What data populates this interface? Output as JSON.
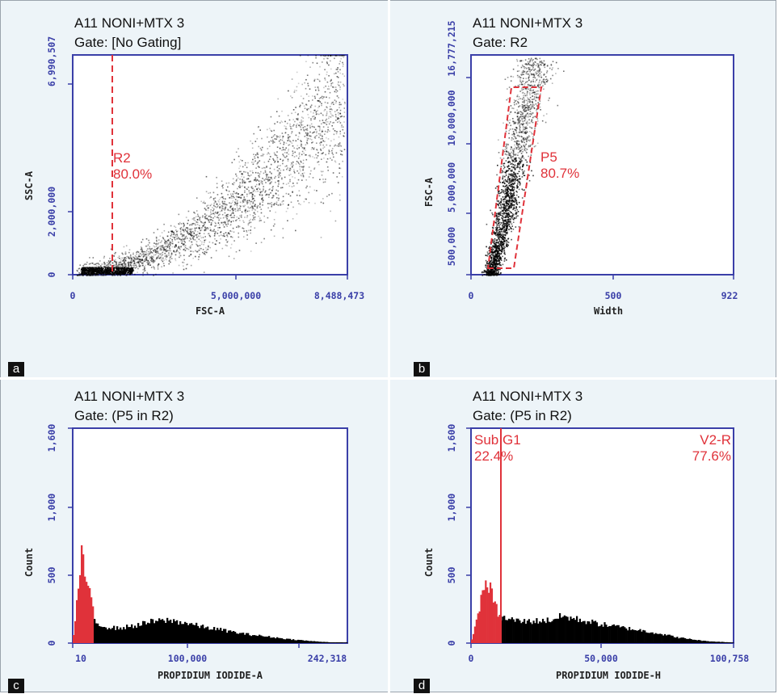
{
  "panels": [
    {
      "letter": "a",
      "title": "A11 NONI+MTX 3",
      "gate": "Gate: [No Gating]",
      "xlabel": "FSC-A",
      "ylabel": "SSC-A",
      "xticks": [
        "0",
        "5,000,000",
        "8,488,473"
      ],
      "yticks": [
        "0",
        "2,000,000",
        "6,990,507"
      ],
      "region": {
        "name": "R2",
        "pct": "80.0%"
      }
    },
    {
      "letter": "b",
      "title": "A11 NONI+MTX 3",
      "gate": "Gate: R2",
      "xlabel": "Width",
      "ylabel": "FSC-A",
      "xticks": [
        "0",
        "500",
        "922"
      ],
      "yticks": [
        "500,000",
        "5,000,000",
        "10,000,000",
        "16,777,215"
      ],
      "region": {
        "name": "P5",
        "pct": "80.7%"
      }
    },
    {
      "letter": "c",
      "title": "A11 NONI+MTX 3",
      "gate": "Gate: (P5 in R2)",
      "xlabel": "PROPIDIUM IODIDE-A",
      "ylabel": "Count",
      "xticks": [
        "10",
        "100,000",
        "242,318"
      ],
      "yticks": [
        "0",
        "500",
        "1,000",
        "1,600"
      ]
    },
    {
      "letter": "d",
      "title": "A11 NONI+MTX 3",
      "gate": "Gate: (P5 in R2)",
      "xlabel": "PROPIDIUM IODIDE-H",
      "ylabel": "Count",
      "xticks": [
        "0",
        "50,000",
        "100,758"
      ],
      "yticks": [
        "0",
        "500",
        "1,000",
        "1,600"
      ],
      "regions": [
        {
          "name": "Sub G1",
          "pct": "22.4%"
        },
        {
          "name": "V2-R",
          "pct": "77.6%"
        }
      ]
    }
  ],
  "colors": {
    "axis": "#3a3fa8",
    "gate": "#e0323a",
    "background": "#edf4f8"
  },
  "chart_data": [
    {
      "type": "scatter",
      "title": "A11 NONI+MTX 3",
      "subtitle": "Gate: [No Gating]",
      "xlabel": "FSC-A",
      "ylabel": "SSC-A",
      "xlim": [
        0,
        8488473
      ],
      "ylim": [
        0,
        6990507
      ],
      "density_trend_x": [
        300000,
        1000000,
        2000000,
        3000000,
        4000000,
        5000000,
        6000000,
        7000000,
        8000000
      ],
      "density_trend_y": [
        60000,
        200000,
        450000,
        900000,
        1500000,
        2200000,
        3100000,
        4200000,
        5300000
      ],
      "gate_line_x": 1500000,
      "gate": {
        "name": "R2",
        "percent": 80.0
      }
    },
    {
      "type": "scatter",
      "title": "A11 NONI+MTX 3",
      "subtitle": "Gate: R2",
      "xlabel": "Width",
      "ylabel": "FSC-A",
      "xlim": [
        0,
        922
      ],
      "ylim": [
        500000,
        16777215
      ],
      "density_trend_x": [
        70,
        100,
        130,
        160,
        190,
        220
      ],
      "density_trend_y": [
        700000,
        3000000,
        6000000,
        9500000,
        13000000,
        16000000
      ],
      "gate": {
        "name": "P5",
        "percent": 80.7,
        "polygon_x": [
          60,
          120,
          250,
          180
        ],
        "polygon_y": [
          500000,
          500000,
          14800000,
          14800000
        ]
      }
    },
    {
      "type": "bar",
      "title": "A11 NONI+MTX 3",
      "subtitle": "Gate: (P5 in R2)",
      "xlabel": "PROPIDIUM IODIDE-A",
      "ylabel": "Count",
      "xlim": [
        10,
        242318
      ],
      "ylim": [
        0,
        1600
      ],
      "bin_centers": [
        0,
        8000,
        14000,
        20000,
        30000,
        40000,
        55000,
        70000,
        85000,
        100000,
        115000,
        130000,
        150000,
        170000,
        190000,
        210000,
        230000
      ],
      "counts": [
        0,
        650,
        400,
        150,
        120,
        110,
        130,
        160,
        170,
        150,
        120,
        100,
        70,
        50,
        30,
        15,
        5
      ],
      "gate_x": 18000
    },
    {
      "type": "bar",
      "title": "A11 NONI+MTX 3",
      "subtitle": "Gate: (P5 in R2)",
      "xlabel": "PROPIDIUM IODIDE-H",
      "ylabel": "Count",
      "xlim": [
        0,
        100758
      ],
      "ylim": [
        0,
        1600
      ],
      "bin_centers": [
        0,
        3000,
        6000,
        9000,
        11000,
        20000,
        30000,
        35000,
        40000,
        50000,
        60000,
        70000,
        80000,
        90000,
        100000
      ],
      "counts": [
        0,
        250,
        480,
        300,
        190,
        160,
        170,
        200,
        180,
        140,
        110,
        80,
        40,
        15,
        5
      ],
      "gate_x": 11000,
      "gates": [
        {
          "name": "Sub G1",
          "percent": 22.4
        },
        {
          "name": "V2-R",
          "percent": 77.6
        }
      ]
    }
  ]
}
